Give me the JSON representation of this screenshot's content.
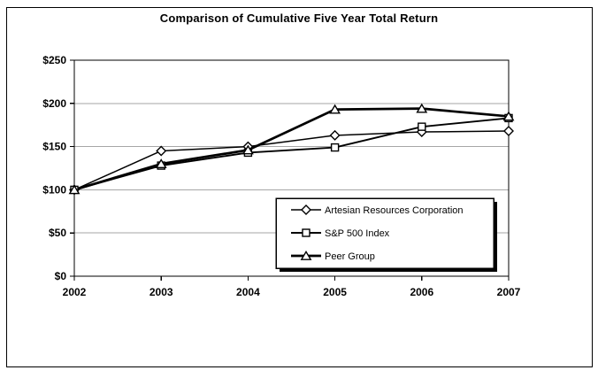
{
  "chart_data": {
    "type": "line",
    "title": "Comparison of Cumulative Five Year Total Return",
    "xlabel": "",
    "ylabel": "",
    "categories": [
      "2002",
      "2003",
      "2004",
      "2005",
      "2006",
      "2007"
    ],
    "series": [
      {
        "name": "Artesian Resources Corporation",
        "marker": "diamond",
        "values": [
          100,
          145,
          150,
          163,
          167,
          168
        ]
      },
      {
        "name": "S&P 500 Index",
        "marker": "square",
        "values": [
          100,
          128,
          143,
          149,
          173,
          183
        ]
      },
      {
        "name": "Peer Group",
        "marker": "triangle",
        "values": [
          100,
          130,
          146,
          193,
          194,
          185
        ]
      }
    ],
    "ylim": [
      0,
      250
    ],
    "ytick_step": 50,
    "ytick_labels": [
      "$0",
      "$50",
      "$100",
      "$150",
      "$200",
      "$250"
    ],
    "grid": true,
    "legend": {
      "position": "inside-lower-right",
      "entries": [
        "Artesian Resources Corporation",
        "S&P 500 Index",
        "Peer Group"
      ]
    },
    "colors": {
      "line": "#000000",
      "grid": "#a6a6a6",
      "background": "#ffffff",
      "text": "#000000"
    }
  }
}
